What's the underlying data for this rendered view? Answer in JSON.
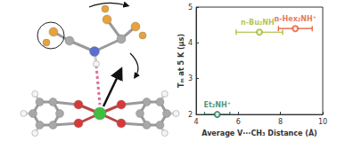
{
  "chart_data": {
    "type": "scatter",
    "xlabel": "Average V···CH₃ Distance (Å)",
    "ylabel": "Tₘ at 5 K (μs)",
    "xlim": [
      4,
      10
    ],
    "ylim": [
      2,
      5
    ],
    "xticks": [
      4,
      6,
      8,
      10
    ],
    "yticks": [
      2,
      3,
      4,
      5
    ],
    "grid": false,
    "series": [
      {
        "name": "Et₂NH⁺",
        "color": "#1f7a5c",
        "x": [
          5.0
        ],
        "values": [
          2.0
        ],
        "xerr": [
          0.6
        ]
      },
      {
        "name": "n-Bu₂NH⁺",
        "color": "#a3b52a",
        "x": [
          7.0
        ],
        "values": [
          4.3
        ],
        "xerr": [
          1.1
        ]
      },
      {
        "name": "n-Hex₂NH⁺",
        "color": "#e0582e",
        "x": [
          8.7
        ],
        "values": [
          4.4
        ],
        "xerr": [
          0.8
        ]
      }
    ]
  }
}
